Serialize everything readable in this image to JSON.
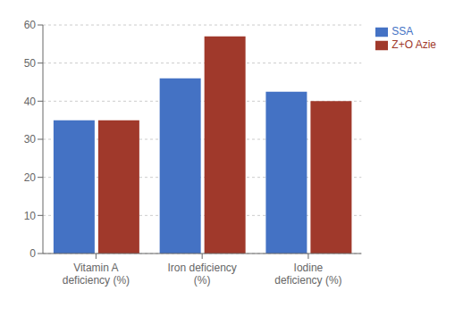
{
  "chart_data": {
    "type": "bar",
    "categories": [
      "Vitamin A\ndeficiency (%)",
      "Iron deficiency\n(%)",
      "Iodine\ndeficiency (%)"
    ],
    "series": [
      {
        "name": "SSA",
        "color": "#4472C4",
        "values": [
          35,
          46,
          42.5
        ]
      },
      {
        "name": "Z+O Azie",
        "color": "#A0392B",
        "values": [
          35,
          57,
          40
        ]
      }
    ],
    "ylim": [
      0,
      60
    ],
    "yticks": [
      0,
      10,
      20,
      30,
      40,
      50,
      60
    ],
    "grid": true,
    "legend": "right"
  }
}
